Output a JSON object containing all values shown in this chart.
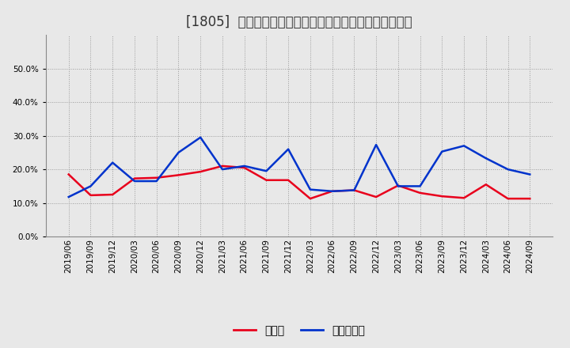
{
  "title": "[1805]  現頲金、有利子負債の総資産に対する比率の推移",
  "x_labels": [
    "2019/06",
    "2019/09",
    "2019/12",
    "2020/03",
    "2020/06",
    "2020/09",
    "2020/12",
    "2021/03",
    "2021/06",
    "2021/09",
    "2021/12",
    "2022/03",
    "2022/06",
    "2022/09",
    "2022/12",
    "2023/03",
    "2023/06",
    "2023/09",
    "2023/12",
    "2024/03",
    "2024/06",
    "2024/09"
  ],
  "cash": [
    0.185,
    0.123,
    0.125,
    0.173,
    0.175,
    0.183,
    0.193,
    0.21,
    0.205,
    0.168,
    0.168,
    0.113,
    0.135,
    0.138,
    0.118,
    0.152,
    0.13,
    0.12,
    0.115,
    0.155,
    0.113,
    0.113
  ],
  "debt": [
    0.118,
    0.15,
    0.22,
    0.165,
    0.165,
    0.25,
    0.295,
    0.2,
    0.21,
    0.195,
    0.26,
    0.14,
    0.135,
    0.138,
    0.273,
    0.15,
    0.15,
    0.253,
    0.27,
    0.233,
    0.2,
    0.185
  ],
  "cash_color": "#e8001c",
  "debt_color": "#0033cc",
  "background_color": "#e8e8e8",
  "plot_bg_color": "#e8e8e8",
  "grid_color": "#aaaaaa",
  "legend_cash": "現頲金",
  "legend_debt": "有利子負債",
  "ylim": [
    0.0,
    0.6
  ],
  "yticks": [
    0.0,
    0.1,
    0.2,
    0.3,
    0.4,
    0.5
  ],
  "title_fontsize": 12,
  "axis_fontsize": 7.5,
  "legend_fontsize": 10,
  "linewidth": 1.8
}
